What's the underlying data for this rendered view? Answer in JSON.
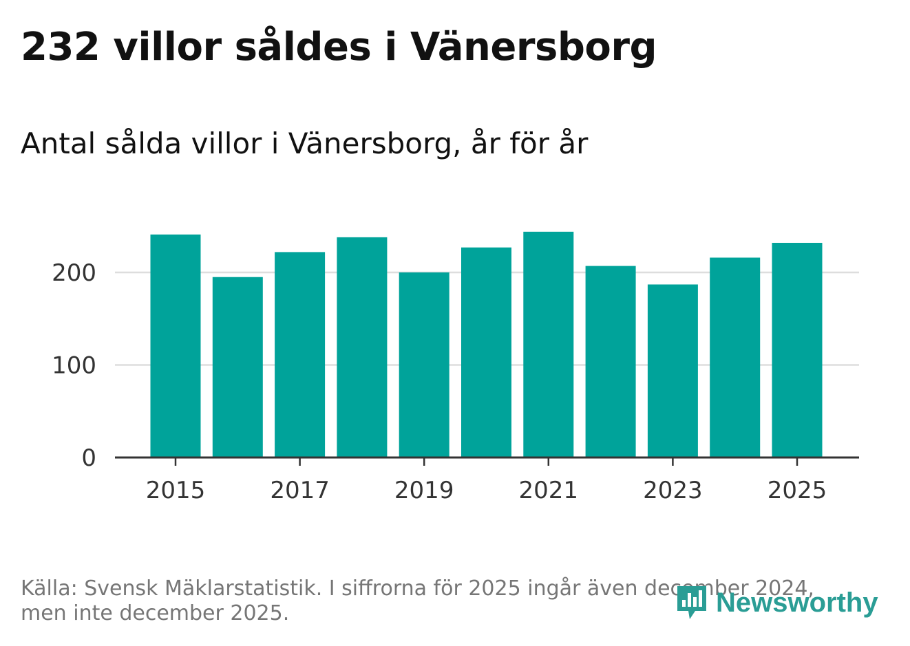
{
  "header": {
    "title": "232 villor såldes i Vänersborg",
    "subtitle": "Antal sålda villor i Vänersborg, år för år"
  },
  "footer": {
    "source_line1": "Källa: Svensk Mäklarstatistik. I siffrorna för 2025 ingår även december 2024,",
    "source_line2": "men inte december 2025.",
    "logo_text": "Newsworthy",
    "logo_icon": "bar-chart-speech-bubble-icon"
  },
  "colors": {
    "bar": "#00a39a",
    "grid": "#dddddd",
    "axis": "#333333",
    "tick_label": "#333333",
    "logo": "#2a9d95"
  },
  "chart_data": {
    "type": "bar",
    "title": "232 villor såldes i Vänersborg",
    "subtitle": "Antal sålda villor i Vänersborg, år för år",
    "xlabel": "",
    "ylabel": "",
    "categories": [
      "2015",
      "2016",
      "2017",
      "2018",
      "2019",
      "2020",
      "2021",
      "2022",
      "2023",
      "2024",
      "2025"
    ],
    "values": [
      241,
      195,
      222,
      238,
      200,
      227,
      244,
      207,
      187,
      216,
      232
    ],
    "x_tick_labels": [
      "2015",
      "2017",
      "2019",
      "2021",
      "2023",
      "2025"
    ],
    "y_ticks": [
      0,
      100,
      200
    ],
    "y_tick_labels": [
      "0",
      "100",
      "200"
    ],
    "ylim": [
      0,
      260
    ],
    "grid": true
  }
}
